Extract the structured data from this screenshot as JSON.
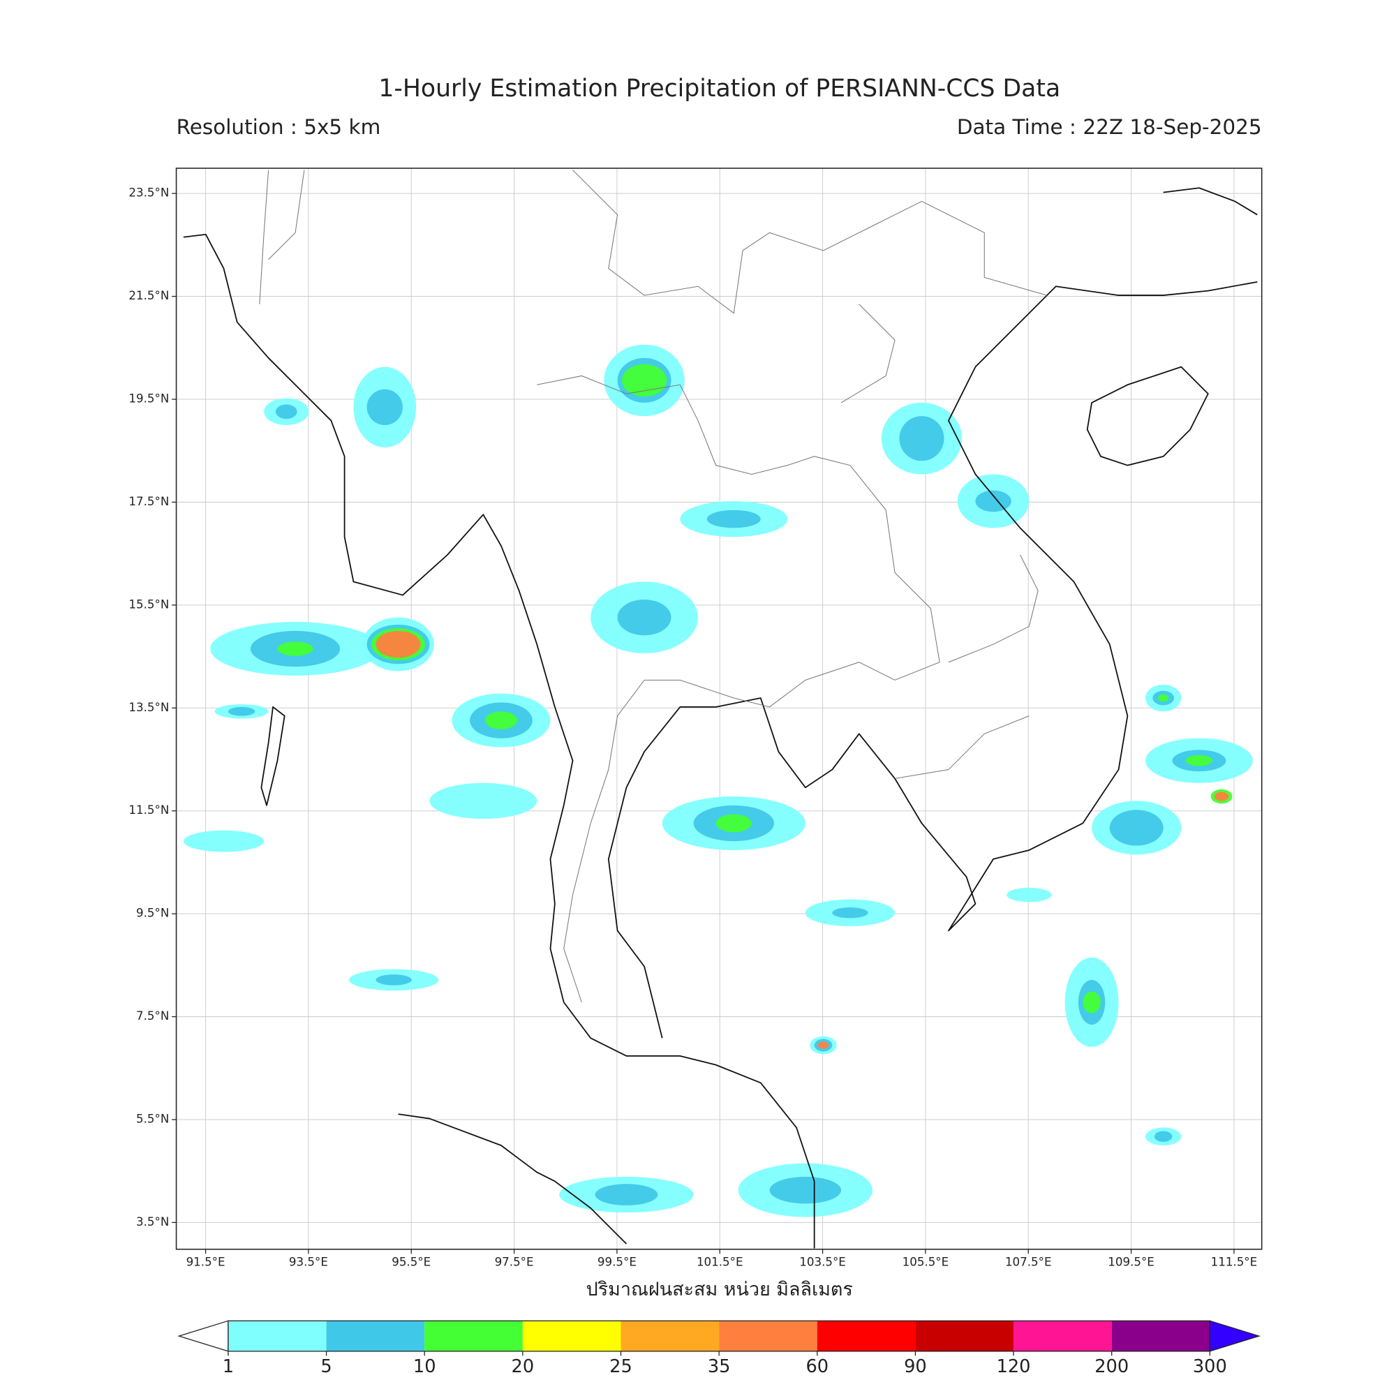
{
  "header": {
    "title": "1-Hourly Estimation Precipitation of PERSIANN-CCS Data",
    "resolution": "Resolution : 5x5 km",
    "data_time": "Data Time : 22Z 18-Sep-2025"
  },
  "map": {
    "xlim": [
      90.93,
      112.04
    ],
    "ylim": [
      2.98,
      23.99
    ],
    "grid": true,
    "xlabel": "ปริมาณฝนสะสม หน่วย มิลลิเมตร",
    "xticks": [
      {
        "value": 91.5,
        "label": "91.5°E"
      },
      {
        "value": 93.5,
        "label": "93.5°E"
      },
      {
        "value": 95.5,
        "label": "95.5°E"
      },
      {
        "value": 97.5,
        "label": "97.5°E"
      },
      {
        "value": 99.5,
        "label": "99.5°E"
      },
      {
        "value": 101.5,
        "label": "101.5°E"
      },
      {
        "value": 103.5,
        "label": "103.5°E"
      },
      {
        "value": 105.5,
        "label": "105.5°E"
      },
      {
        "value": 107.5,
        "label": "107.5°E"
      },
      {
        "value": 109.5,
        "label": "109.5°E"
      },
      {
        "value": 111.5,
        "label": "111.5°E"
      }
    ],
    "yticks": [
      {
        "value": 23.5,
        "label": "23.5°N"
      },
      {
        "value": 21.5,
        "label": "21.5°N"
      },
      {
        "value": 19.5,
        "label": "19.5°N"
      },
      {
        "value": 17.5,
        "label": "17.5°N"
      },
      {
        "value": 15.5,
        "label": "15.5°N"
      },
      {
        "value": 13.5,
        "label": "13.5°N"
      },
      {
        "value": 11.5,
        "label": "11.5°N"
      },
      {
        "value": 9.5,
        "label": "9.5°N"
      },
      {
        "value": 7.5,
        "label": "7.5°N"
      },
      {
        "value": 5.5,
        "label": "5.5°N"
      },
      {
        "value": 3.5,
        "label": "3.5°N"
      }
    ]
  },
  "colorbar": {
    "levels": [
      1,
      5,
      10,
      20,
      25,
      35,
      60,
      90,
      120,
      200,
      300
    ],
    "colors": [
      "#80ffff",
      "#40c8e8",
      "#44ff33",
      "#ffff00",
      "#ffa822",
      "#ff7f3f",
      "#ff0000",
      "#c80000",
      "#ff1493",
      "#8b008b"
    ],
    "under_color": "#ffffff",
    "over_color": "#3300ff"
  }
}
